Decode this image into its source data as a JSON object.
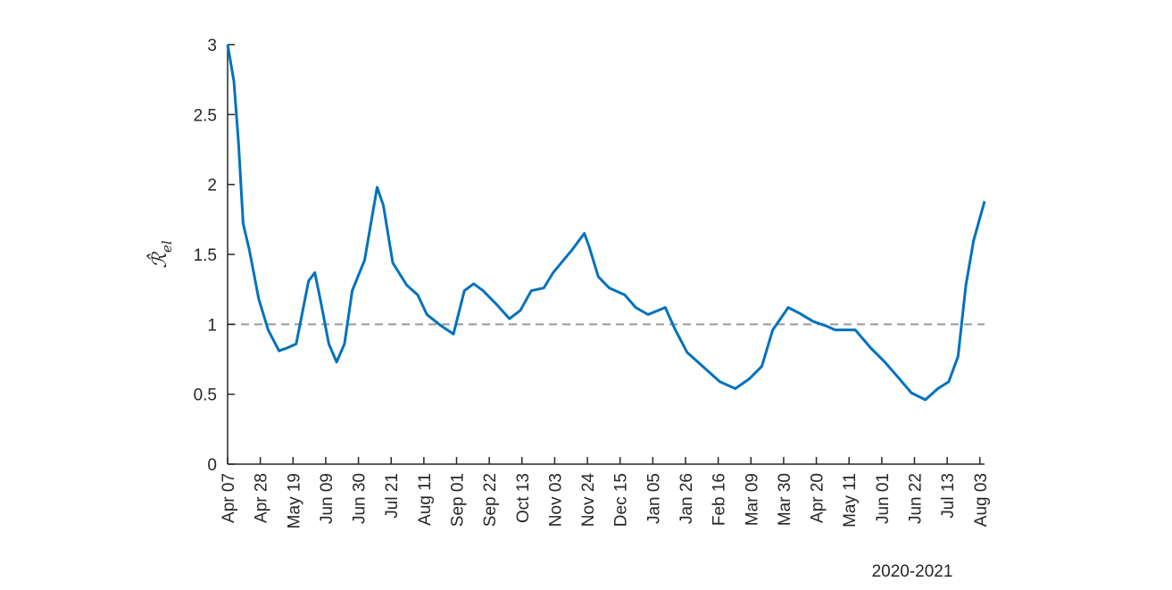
{
  "chart_data": {
    "type": "line",
    "ylabel": {
      "main": "ℛ̂",
      "sub": "el"
    },
    "xlabel": "2020-2021",
    "xlim": [
      0,
      486
    ],
    "ylim": [
      0,
      3
    ],
    "yticks": [
      0,
      0.5,
      1,
      1.5,
      2,
      2.5,
      3
    ],
    "xticks": [
      {
        "value": 0,
        "label": "Apr 07"
      },
      {
        "value": 21,
        "label": "Apr 28"
      },
      {
        "value": 42,
        "label": "May 19"
      },
      {
        "value": 63,
        "label": "Jun 09"
      },
      {
        "value": 84,
        "label": "Jun 30"
      },
      {
        "value": 105,
        "label": "Jul 21"
      },
      {
        "value": 126,
        "label": "Aug 11"
      },
      {
        "value": 147,
        "label": "Sep 01"
      },
      {
        "value": 168,
        "label": "Sep 22"
      },
      {
        "value": 189,
        "label": "Oct 13"
      },
      {
        "value": 210,
        "label": "Nov 03"
      },
      {
        "value": 231,
        "label": "Nov 24"
      },
      {
        "value": 252,
        "label": "Dec 15"
      },
      {
        "value": 273,
        "label": "Jan 05"
      },
      {
        "value": 294,
        "label": "Jan 26"
      },
      {
        "value": 315,
        "label": "Feb 16"
      },
      {
        "value": 336,
        "label": "Mar 09"
      },
      {
        "value": 357,
        "label": "Mar 30"
      },
      {
        "value": 378,
        "label": "Apr 20"
      },
      {
        "value": 399,
        "label": "May 11"
      },
      {
        "value": 420,
        "label": "Jun 01"
      },
      {
        "value": 441,
        "label": "Jun 22"
      },
      {
        "value": 462,
        "label": "Jul 13"
      },
      {
        "value": 483,
        "label": "Aug 03"
      }
    ],
    "reference_line": {
      "value": 1,
      "color": "#999999"
    },
    "series": [
      {
        "color": "#0072bd",
        "x": [
          0,
          4,
          7,
          10,
          14,
          20,
          26,
          33,
          38,
          44,
          52,
          56,
          60,
          65,
          70,
          75,
          80,
          88,
          92,
          96,
          100,
          106,
          115,
          122,
          128,
          137,
          145,
          152,
          158,
          164,
          172,
          181,
          188,
          195,
          203,
          209,
          221,
          229,
          232,
          238,
          245,
          255,
          262,
          270,
          281,
          287,
          295,
          304,
          316,
          326,
          335,
          343,
          350,
          360,
          367,
          376,
          384,
          390,
          403,
          413,
          422,
          429,
          439,
          448,
          456,
          463,
          469,
          474,
          479,
          486
        ],
        "values": [
          3.0,
          2.74,
          2.3,
          1.72,
          1.53,
          1.18,
          0.96,
          0.81,
          0.83,
          0.86,
          1.31,
          1.37,
          1.15,
          0.86,
          0.73,
          0.86,
          1.24,
          1.46,
          1.72,
          1.98,
          1.85,
          1.44,
          1.28,
          1.21,
          1.07,
          0.99,
          0.93,
          1.24,
          1.29,
          1.24,
          1.15,
          1.04,
          1.1,
          1.24,
          1.26,
          1.37,
          1.53,
          1.65,
          1.56,
          1.34,
          1.26,
          1.21,
          1.12,
          1.07,
          1.12,
          0.97,
          0.8,
          0.71,
          0.59,
          0.54,
          0.61,
          0.7,
          0.96,
          1.12,
          1.08,
          1.02,
          0.99,
          0.96,
          0.96,
          0.83,
          0.73,
          0.64,
          0.51,
          0.46,
          0.54,
          0.59,
          0.77,
          1.28,
          1.6,
          1.88
        ]
      }
    ]
  }
}
